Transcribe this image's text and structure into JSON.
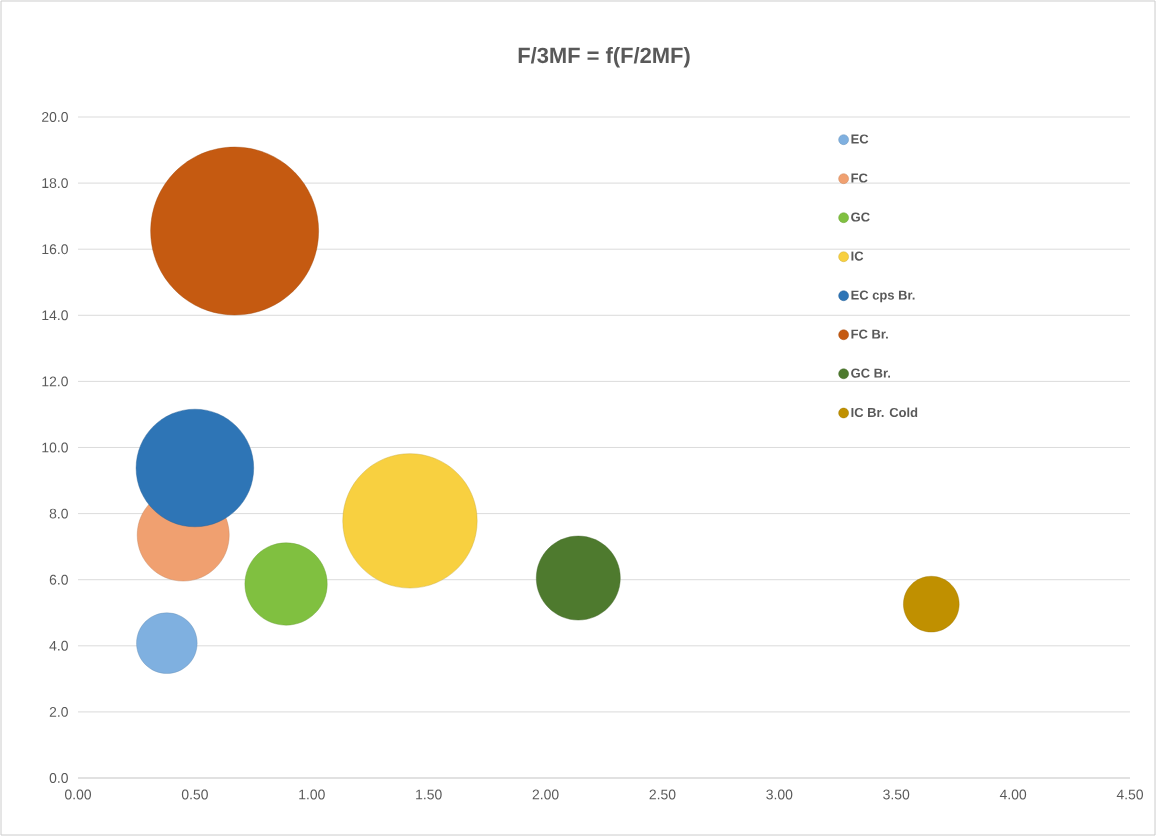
{
  "chart_data": {
    "type": "bubble",
    "title": "F/3MF = f(F/2MF)",
    "series": [
      {
        "name": "EC",
        "color": "#7fb0e0",
        "x": [
          0.38
        ],
        "values": [
          4.08
        ],
        "sizes": [
          0.13
        ]
      },
      {
        "name": "FC",
        "color": "#f0a070",
        "x": [
          0.45
        ],
        "values": [
          7.35
        ],
        "sizes": [
          0.3
        ]
      },
      {
        "name": "GC",
        "color": "#80c040",
        "x": [
          0.89
        ],
        "values": [
          5.87
        ],
        "sizes": [
          0.24
        ]
      },
      {
        "name": "IC",
        "color": "#f8d040",
        "x": [
          1.42
        ],
        "values": [
          7.78
        ],
        "sizes": [
          0.64
        ]
      },
      {
        "name": "EC cps Br.",
        "color": "#2e75b6",
        "x": [
          0.5
        ],
        "values": [
          9.38
        ],
        "sizes": [
          0.49
        ]
      },
      {
        "name": "FC Br.",
        "color": "#c55a11",
        "x": [
          0.67
        ],
        "values": [
          16.55
        ],
        "sizes": [
          1
        ]
      },
      {
        "name": "GC Br.",
        "color": "#4e7a2e",
        "x": [
          2.14
        ],
        "values": [
          6.05
        ],
        "sizes": [
          0.25
        ]
      },
      {
        "name": "IC Br. Cold",
        "color": "#c09000",
        "x": [
          3.65
        ],
        "values": [
          5.26
        ],
        "sizes": [
          0.11
        ]
      }
    ],
    "xlim": [
      0,
      4.5
    ],
    "ylim": [
      0,
      20
    ],
    "xticks": [
      {
        "value": 0,
        "label": "0.00"
      },
      {
        "value": 0.5,
        "label": "0.50"
      },
      {
        "value": 1,
        "label": "1.00"
      },
      {
        "value": 1.5,
        "label": "1.50"
      },
      {
        "value": 2,
        "label": "2.00"
      },
      {
        "value": 2.5,
        "label": "2.50"
      },
      {
        "value": 3,
        "label": "3.00"
      },
      {
        "value": 3.5,
        "label": "3.50"
      },
      {
        "value": 4,
        "label": "4.00"
      },
      {
        "value": 4.5,
        "label": "4.50"
      }
    ],
    "yticks": [
      {
        "value": 0,
        "label": "0.0"
      },
      {
        "value": 2,
        "label": "2.0"
      },
      {
        "value": 4,
        "label": "4.0"
      },
      {
        "value": 6,
        "label": "6.0"
      },
      {
        "value": 8,
        "label": "8.0"
      },
      {
        "value": 10,
        "label": "10.0"
      },
      {
        "value": 12,
        "label": "12.0"
      },
      {
        "value": 14,
        "label": "14.0"
      },
      {
        "value": 16,
        "label": "16.0"
      },
      {
        "value": 18,
        "label": "18.0"
      },
      {
        "value": 20,
        "label": "20.0"
      }
    ],
    "grid": "y",
    "legend": "top right"
  }
}
